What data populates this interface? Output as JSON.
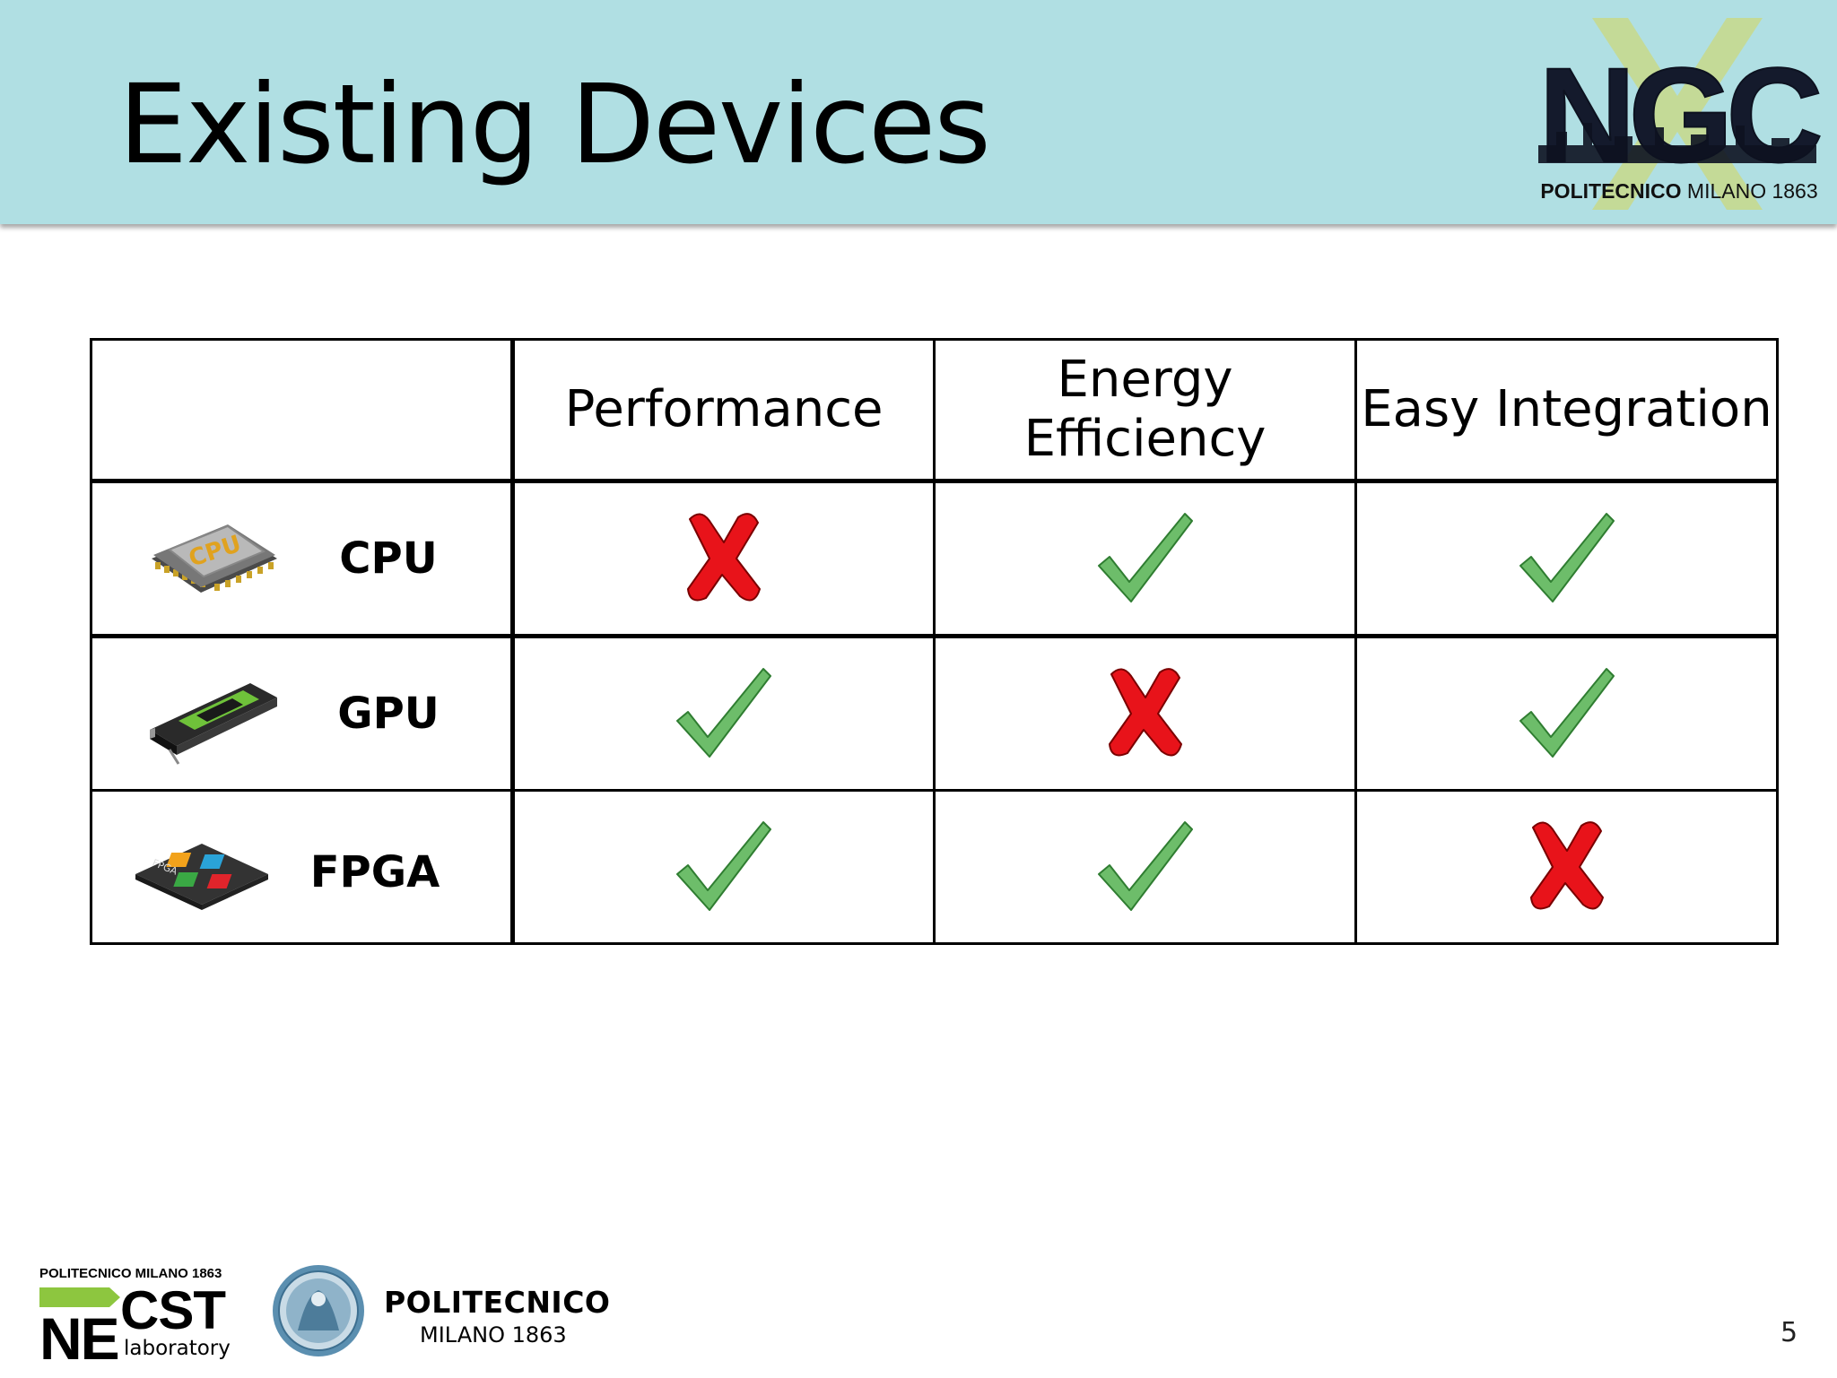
{
  "slide": {
    "title": "Existing Devices",
    "page_number": "5"
  },
  "header_logo": {
    "text": "NGC",
    "caption_bold": "POLITECNICO",
    "caption_rest": " MILANO 1863"
  },
  "comparison": {
    "columns": [
      "Performance",
      "Energy Efficiency",
      "Easy Integration"
    ],
    "rows": [
      {
        "device": "CPU",
        "icon": "cpu-chip-icon",
        "marks": [
          "cross",
          "check",
          "check"
        ]
      },
      {
        "device": "GPU",
        "icon": "gpu-card-icon",
        "marks": [
          "check",
          "cross",
          "check"
        ]
      },
      {
        "device": "FPGA",
        "icon": "fpga-chip-icon",
        "marks": [
          "check",
          "check",
          "cross"
        ]
      }
    ],
    "colors": {
      "check": "#6dbd6a",
      "cross": "#e8131a"
    }
  },
  "footer": {
    "necst_top": "POLITECNICO MILANO 1863",
    "necst_ne": "NE",
    "necst_cst": "CST",
    "necst_lab": "laboratory",
    "polimi_name": "POLITECNICO",
    "polimi_sub": "MILANO 1863"
  }
}
